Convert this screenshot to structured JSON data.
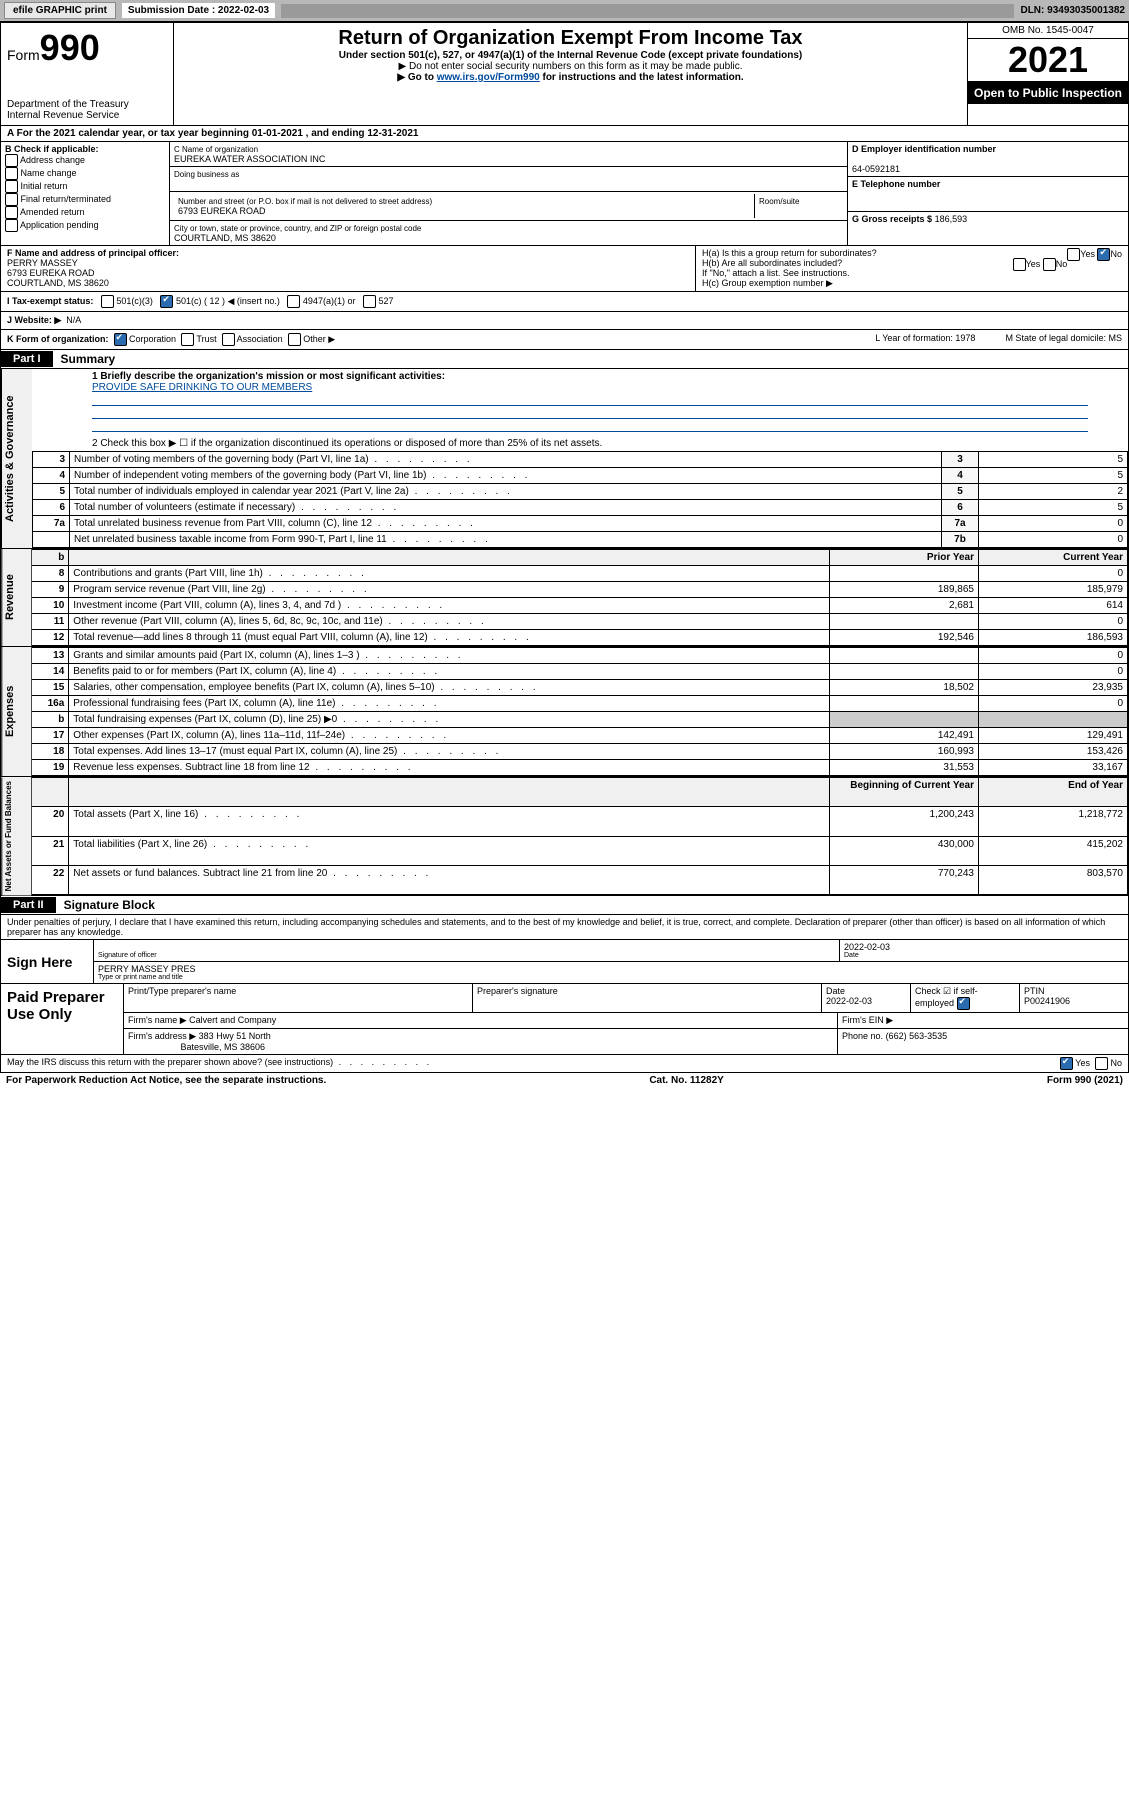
{
  "topbar": {
    "efile": "efile GRAPHIC print",
    "sub_label": "Submission Date : 2022-02-03",
    "dln": "DLN: 93493035001382"
  },
  "header": {
    "form_prefix": "Form",
    "form_num": "990",
    "dept": "Department of the Treasury",
    "irs": "Internal Revenue Service",
    "title": "Return of Organization Exempt From Income Tax",
    "sub1": "Under section 501(c), 527, or 4947(a)(1) of the Internal Revenue Code (except private foundations)",
    "sub2": "▶ Do not enter social security numbers on this form as it may be made public.",
    "sub3_pre": "▶ Go to ",
    "sub3_link": "www.irs.gov/Form990",
    "sub3_post": " for instructions and the latest information.",
    "omb": "OMB No. 1545-0047",
    "year": "2021",
    "open": "Open to Public Inspection"
  },
  "lineA": "A For the 2021 calendar year, or tax year beginning 01-01-2021   , and ending 12-31-2021",
  "B": {
    "label": "B Check if applicable:",
    "opts": [
      "Address change",
      "Name change",
      "Initial return",
      "Final return/terminated",
      "Amended return",
      "Application pending"
    ]
  },
  "C": {
    "name_lbl": "C Name of organization",
    "name": "EUREKA WATER ASSOCIATION INC",
    "dba_lbl": "Doing business as",
    "dba": "",
    "addr_lbl": "Number and street (or P.O. box if mail is not delivered to street address)",
    "room_lbl": "Room/suite",
    "addr": "6793 EUREKA ROAD",
    "city_lbl": "City or town, state or province, country, and ZIP or foreign postal code",
    "city": "COURTLAND, MS  38620"
  },
  "D": {
    "lbl": "D Employer identification number",
    "val": "64-0592181"
  },
  "E": {
    "lbl": "E Telephone number",
    "val": ""
  },
  "G": {
    "lbl": "G Gross receipts $",
    "val": "186,593"
  },
  "F": {
    "lbl": "F Name and address of principal officer:",
    "name": "PERRY MASSEY",
    "addr1": "6793 EUREKA ROAD",
    "addr2": "COURTLAND, MS  38620"
  },
  "H": {
    "a": "H(a)  Is this a group return for subordinates?",
    "a_yes": "Yes",
    "a_no": "No",
    "b": "H(b)  Are all subordinates included?",
    "b_yes": "Yes",
    "b_no": "No",
    "b_note": "If \"No,\" attach a list. See instructions.",
    "c": "H(c)  Group exemption number ▶"
  },
  "I": {
    "lbl": "I   Tax-exempt status:",
    "o1": "501(c)(3)",
    "o2": "501(c) ( 12 ) ◀ (insert no.)",
    "o3": "4947(a)(1) or",
    "o4": "527"
  },
  "J": {
    "lbl": "J   Website: ▶",
    "val": "N/A"
  },
  "K": {
    "lbl": "K Form of organization:",
    "o1": "Corporation",
    "o2": "Trust",
    "o3": "Association",
    "o4": "Other ▶",
    "L": "L Year of formation: 1978",
    "M": "M State of legal domicile: MS"
  },
  "part1": {
    "hdr": "Part I",
    "title": "Summary",
    "l1_lbl": "1  Briefly describe the organization's mission or most significant activities:",
    "l1_val": "PROVIDE SAFE DRINKING TO OUR MEMBERS",
    "l2": "2   Check this box ▶ ☐  if the organization discontinued its operations or disposed of more than 25% of its net assets."
  },
  "gov_rows": [
    {
      "n": "3",
      "d": "Number of voting members of the governing body (Part VI, line 1a)",
      "box": "3",
      "v": "5"
    },
    {
      "n": "4",
      "d": "Number of independent voting members of the governing body (Part VI, line 1b)",
      "box": "4",
      "v": "5"
    },
    {
      "n": "5",
      "d": "Total number of individuals employed in calendar year 2021 (Part V, line 2a)",
      "box": "5",
      "v": "2"
    },
    {
      "n": "6",
      "d": "Total number of volunteers (estimate if necessary)",
      "box": "6",
      "v": "5"
    },
    {
      "n": "7a",
      "d": "Total unrelated business revenue from Part VIII, column (C), line 12",
      "box": "7a",
      "v": "0"
    },
    {
      "n": "",
      "d": "Net unrelated business taxable income from Form 990-T, Part I, line 11",
      "box": "7b",
      "v": "0"
    }
  ],
  "two_col_hdr": {
    "n": "b",
    "prior": "Prior Year",
    "curr": "Current Year"
  },
  "rev_rows": [
    {
      "n": "8",
      "d": "Contributions and grants (Part VIII, line 1h)",
      "p": "",
      "c": "0"
    },
    {
      "n": "9",
      "d": "Program service revenue (Part VIII, line 2g)",
      "p": "189,865",
      "c": "185,979"
    },
    {
      "n": "10",
      "d": "Investment income (Part VIII, column (A), lines 3, 4, and 7d )",
      "p": "2,681",
      "c": "614"
    },
    {
      "n": "11",
      "d": "Other revenue (Part VIII, column (A), lines 5, 6d, 8c, 9c, 10c, and 11e)",
      "p": "",
      "c": "0"
    },
    {
      "n": "12",
      "d": "Total revenue—add lines 8 through 11 (must equal Part VIII, column (A), line 12)",
      "p": "192,546",
      "c": "186,593"
    }
  ],
  "exp_rows": [
    {
      "n": "13",
      "d": "Grants and similar amounts paid (Part IX, column (A), lines 1–3 )",
      "p": "",
      "c": "0"
    },
    {
      "n": "14",
      "d": "Benefits paid to or for members (Part IX, column (A), line 4)",
      "p": "",
      "c": "0"
    },
    {
      "n": "15",
      "d": "Salaries, other compensation, employee benefits (Part IX, column (A), lines 5–10)",
      "p": "18,502",
      "c": "23,935"
    },
    {
      "n": "16a",
      "d": "Professional fundraising fees (Part IX, column (A), line 11e)",
      "p": "",
      "c": "0"
    },
    {
      "n": "b",
      "d": "Total fundraising expenses (Part IX, column (D), line 25) ▶0",
      "p": "—shade—",
      "c": "—shade—"
    },
    {
      "n": "17",
      "d": "Other expenses (Part IX, column (A), lines 11a–11d, 11f–24e)",
      "p": "142,491",
      "c": "129,491"
    },
    {
      "n": "18",
      "d": "Total expenses. Add lines 13–17 (must equal Part IX, column (A), line 25)",
      "p": "160,993",
      "c": "153,426"
    },
    {
      "n": "19",
      "d": "Revenue less expenses. Subtract line 18 from line 12",
      "p": "31,553",
      "c": "33,167"
    }
  ],
  "na_hdr": {
    "prior": "Beginning of Current Year",
    "curr": "End of Year"
  },
  "na_rows": [
    {
      "n": "20",
      "d": "Total assets (Part X, line 16)",
      "p": "1,200,243",
      "c": "1,218,772"
    },
    {
      "n": "21",
      "d": "Total liabilities (Part X, line 26)",
      "p": "430,000",
      "c": "415,202"
    },
    {
      "n": "22",
      "d": "Net assets or fund balances. Subtract line 21 from line 20",
      "p": "770,243",
      "c": "803,570"
    }
  ],
  "sidetabs": {
    "gov": "Activities & Governance",
    "rev": "Revenue",
    "exp": "Expenses",
    "na": "Net Assets or Fund Balances"
  },
  "part2": {
    "hdr": "Part II",
    "title": "Signature Block",
    "decl": "Under penalties of perjury, I declare that I have examined this return, including accompanying schedules and statements, and to the best of my knowledge and belief, it is true, correct, and complete. Declaration of preparer (other than officer) is based on all information of which preparer has any knowledge."
  },
  "sign": {
    "here": "Sign Here",
    "sig_lbl": "Signature of officer",
    "date": "2022-02-03",
    "date_lbl": "Date",
    "name": "PERRY MASSEY PRES",
    "name_lbl": "Type or print name and title"
  },
  "paid": {
    "hdr": "Paid Preparer Use Only",
    "c1": "Print/Type preparer's name",
    "c2": "Preparer's signature",
    "c3": "Date",
    "c3v": "2022-02-03",
    "c4": "Check ☑ if self-employed",
    "c5": "PTIN",
    "c5v": "P00241906",
    "firm_lbl": "Firm's name   ▶",
    "firm": "Calvert and Company",
    "ein_lbl": "Firm's EIN ▶",
    "addr_lbl": "Firm's address ▶",
    "addr1": "383 Hwy 51 North",
    "addr2": "Batesville, MS  38606",
    "phone_lbl": "Phone no.",
    "phone": "(662) 563-3535"
  },
  "may": {
    "q": "May the IRS discuss this return with the preparer shown above? (see instructions)",
    "yes": "Yes",
    "no": "No"
  },
  "footer": {
    "l": "For Paperwork Reduction Act Notice, see the separate instructions.",
    "m": "Cat. No. 11282Y",
    "r": "Form 990 (2021)"
  }
}
